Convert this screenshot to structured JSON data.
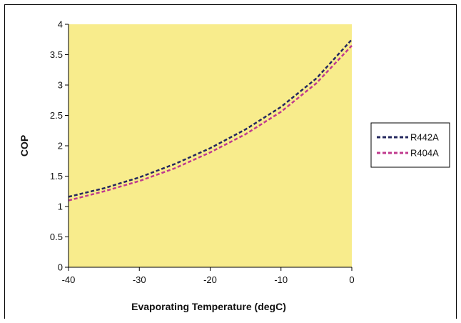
{
  "chart_data": {
    "type": "line",
    "title": "",
    "xlabel": "Evaporating Temperature (degC)",
    "ylabel": "COP",
    "xlim": [
      -40,
      0
    ],
    "ylim": [
      0,
      4
    ],
    "x_ticks": [
      "-40",
      "-30",
      "-20",
      "-10",
      "0"
    ],
    "y_ticks": [
      "0",
      "0.5",
      "1",
      "1.5",
      "2",
      "2.5",
      "3",
      "3.5",
      "4"
    ],
    "grid": false,
    "plot_background": "#f8ec8c",
    "legend_position": "right",
    "series": [
      {
        "name": "R442A",
        "color": "#24285e",
        "x": [
          -40,
          -35,
          -30,
          -25,
          -20,
          -15,
          -10,
          -5,
          0
        ],
        "values": [
          1.16,
          1.3,
          1.48,
          1.7,
          1.96,
          2.27,
          2.64,
          3.11,
          3.75
        ]
      },
      {
        "name": "R404A",
        "color": "#c03a8e",
        "x": [
          -40,
          -35,
          -30,
          -25,
          -20,
          -15,
          -10,
          -5,
          0
        ],
        "values": [
          1.1,
          1.25,
          1.42,
          1.63,
          1.89,
          2.19,
          2.56,
          3.03,
          3.65
        ]
      }
    ]
  }
}
